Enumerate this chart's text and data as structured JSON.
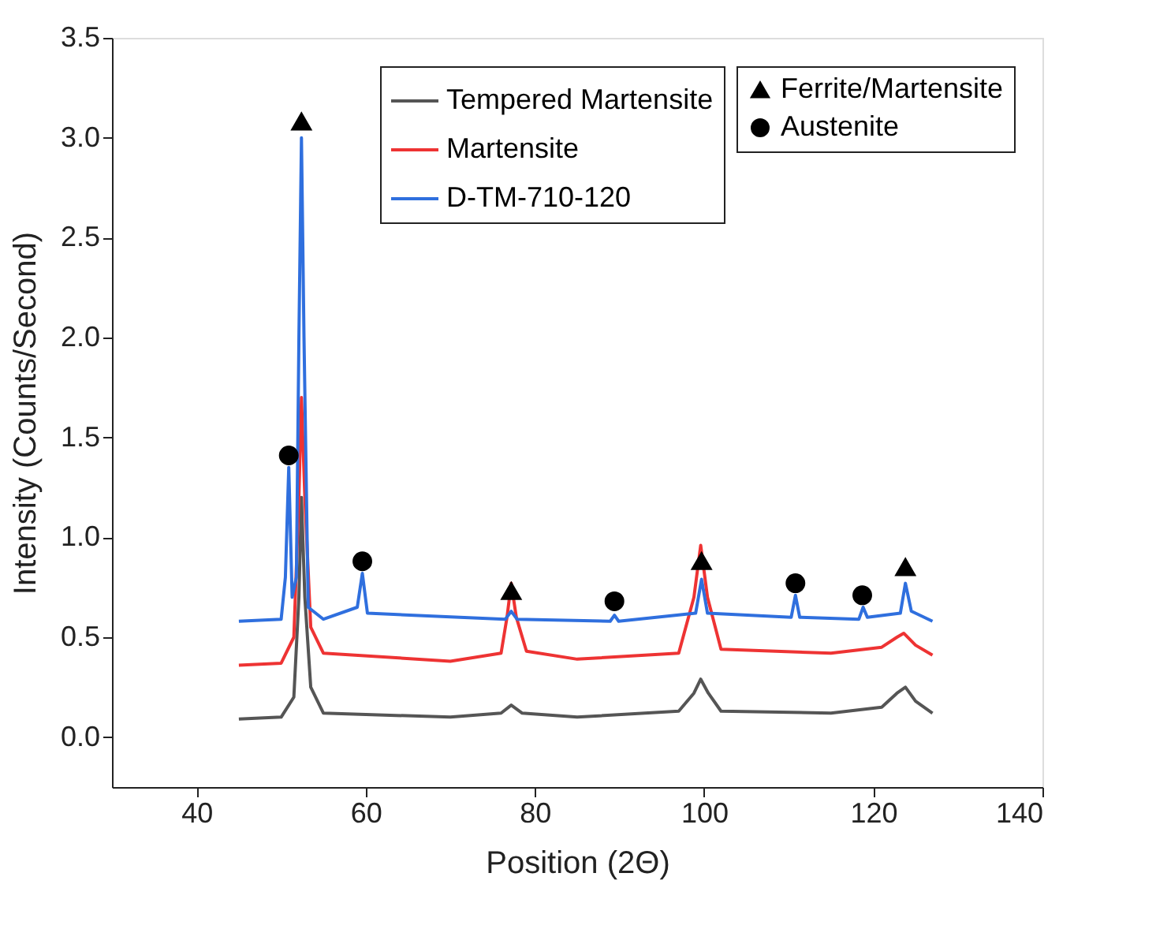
{
  "chart_data": {
    "type": "line",
    "xlabel": "Position (2Θ)",
    "ylabel": "Intensity (Counts/Second)",
    "xlim": [
      30,
      140
    ],
    "xticks": [
      40,
      60,
      80,
      100,
      120,
      140
    ],
    "ylim": [
      -0.25,
      3.5
    ],
    "yticks": [
      {
        "value": 0,
        "label": "0.0"
      },
      0.5,
      {
        "value": 1,
        "label": "1.0"
      },
      1.5,
      {
        "value": 2,
        "label": "2.0"
      },
      2.5,
      {
        "value": 3,
        "label": "3.0"
      },
      3.5
    ],
    "line_style": "solid",
    "grid": false,
    "legend": "top right",
    "series": [
      {
        "name": "Tempered Martensite",
        "color": "#555555",
        "type": "line",
        "marker": "none",
        "x": [
          45,
          50,
          51.5,
          52.1,
          52.4,
          52.8,
          53.5,
          55,
          70,
          76,
          77.2,
          78.5,
          85,
          97,
          98.8,
          99.6,
          100.5,
          102,
          115,
          121,
          122.8,
          123.8,
          125,
          127
        ],
        "values": [
          0.09,
          0.1,
          0.2,
          0.7,
          1.2,
          0.7,
          0.25,
          0.12,
          0.1,
          0.12,
          0.16,
          0.12,
          0.1,
          0.13,
          0.22,
          0.29,
          0.22,
          0.13,
          0.12,
          0.15,
          0.22,
          0.25,
          0.18,
          0.12
        ]
      },
      {
        "name": "Martensite",
        "color": "#ee3333",
        "type": "line",
        "marker": "none",
        "x": [
          45,
          50,
          51.5,
          52.1,
          52.4,
          52.8,
          53.5,
          55,
          70,
          76,
          76.7,
          77.2,
          77.8,
          79,
          85,
          97,
          98.8,
          99.6,
          100.4,
          102,
          115,
          121,
          122.8,
          123.6,
          125,
          127
        ],
        "values": [
          0.36,
          0.37,
          0.5,
          1.2,
          1.7,
          1.2,
          0.55,
          0.42,
          0.38,
          0.42,
          0.6,
          0.77,
          0.6,
          0.43,
          0.39,
          0.42,
          0.7,
          0.96,
          0.7,
          0.44,
          0.42,
          0.45,
          0.5,
          0.52,
          0.46,
          0.41
        ]
      },
      {
        "name": "D-TM-710-120",
        "color": "#2f6fde",
        "type": "line",
        "marker": "none",
        "x": [
          45,
          50,
          50.5,
          50.9,
          51.3,
          51.8,
          52.1,
          52.4,
          52.7,
          53.2,
          55,
          59,
          59.6,
          60.2,
          76.5,
          77.2,
          77.9,
          88.9,
          89.4,
          89.9,
          99,
          99.7,
          100.4,
          110.3,
          110.8,
          111.3,
          118.3,
          118.8,
          119.3,
          123.2,
          123.8,
          124.5,
          127
        ],
        "values": [
          0.58,
          0.59,
          0.8,
          1.35,
          0.7,
          0.8,
          2.0,
          3.0,
          2.0,
          0.65,
          0.59,
          0.65,
          0.82,
          0.62,
          0.59,
          0.63,
          0.59,
          0.58,
          0.61,
          0.58,
          0.62,
          0.79,
          0.62,
          0.6,
          0.71,
          0.6,
          0.59,
          0.65,
          0.6,
          0.62,
          0.77,
          0.63,
          0.58
        ]
      },
      {
        "name": "Ferrite/Martensite",
        "color": "#000000",
        "type": "scatter",
        "marker": "triangle",
        "x": [
          52.4,
          77.2,
          99.7,
          123.8
        ],
        "values": [
          3.08,
          0.73,
          0.88,
          0.85
        ]
      },
      {
        "name": "Austenite",
        "color": "#000000",
        "type": "scatter",
        "marker": "circle",
        "x": [
          50.9,
          59.6,
          89.4,
          110.8,
          118.7
        ],
        "values": [
          1.41,
          0.88,
          0.68,
          0.77,
          0.71
        ]
      }
    ]
  }
}
